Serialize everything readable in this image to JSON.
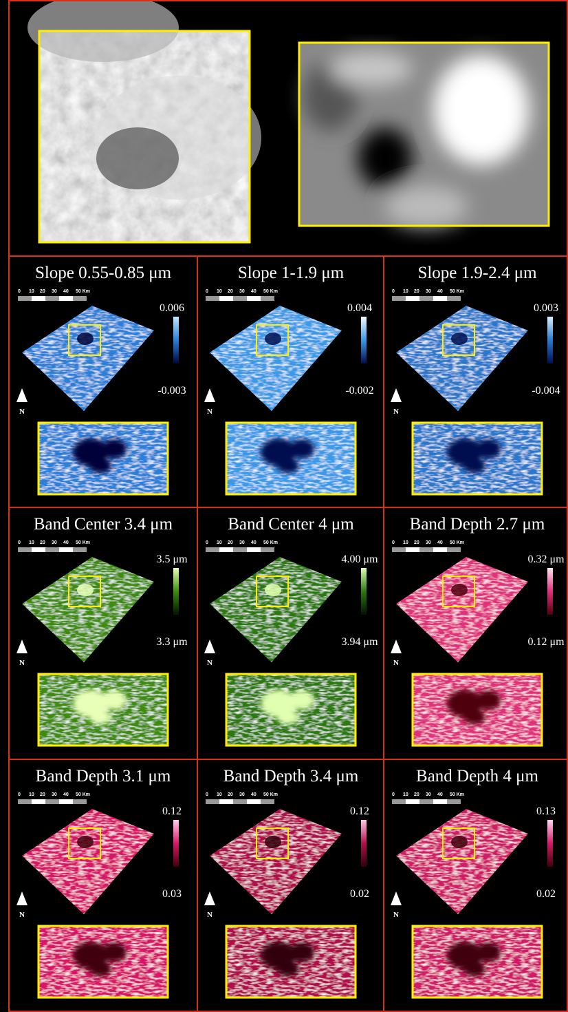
{
  "figure": {
    "scale_bar": {
      "labels": [
        "0",
        "10",
        "20",
        "30",
        "40",
        "50 Km"
      ]
    },
    "north_label": "N",
    "panels": [
      {
        "title": "Slope 0.55-0.85 μm",
        "colorbar_max": "0.006",
        "colorbar_min": "-0.003"
      },
      {
        "title": "Slope 1-1.9 μm",
        "colorbar_max": "0.004",
        "colorbar_min": "-0.002"
      },
      {
        "title": "Slope 1.9-2.4 μm",
        "colorbar_max": "0.003",
        "colorbar_min": "-0.004"
      },
      {
        "title": "Band Center 3.4 μm",
        "colorbar_max": "3.5 μm",
        "colorbar_min": "3.3 μm"
      },
      {
        "title": "Band Center 4 μm",
        "colorbar_max": "4.00 μm",
        "colorbar_min": "3.94 μm"
      },
      {
        "title": "Band Depth 2.7 μm",
        "colorbar_max": "0.32 μm",
        "colorbar_min": "0.12 μm"
      },
      {
        "title": "Band Depth 3.1 μm",
        "colorbar_max": "0.12",
        "colorbar_min": "0.03"
      },
      {
        "title": "Band Depth 3.4 μm",
        "colorbar_max": "0.12",
        "colorbar_min": "0.02"
      },
      {
        "title": "Band Depth 4 μm",
        "colorbar_max": "0.13",
        "colorbar_min": "0.02"
      }
    ]
  }
}
